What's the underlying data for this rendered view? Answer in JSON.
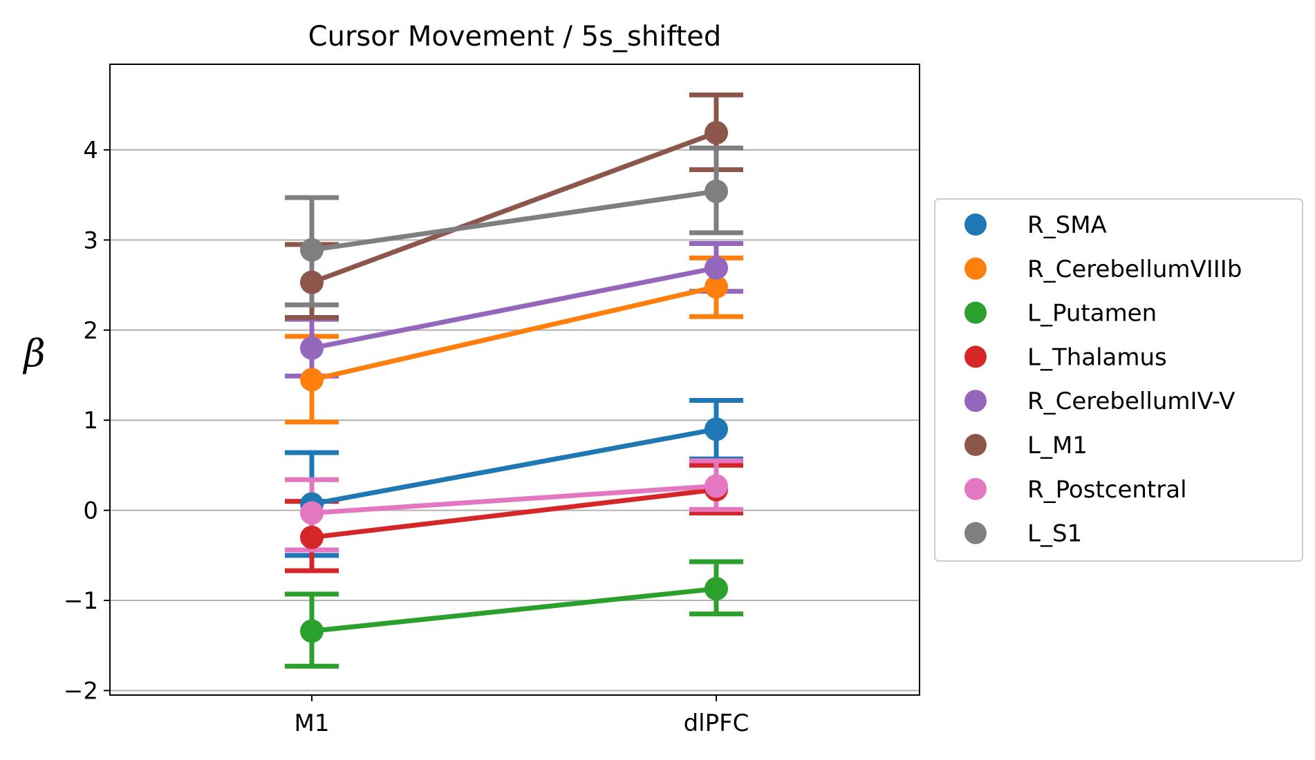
{
  "chart_data": {
    "type": "line",
    "title": "Cursor Movement / 5s_shifted",
    "xlabel": "",
    "ylabel": "β",
    "categories": [
      "M1",
      "dlPFC"
    ],
    "ylim": [
      -2.05,
      4.95
    ],
    "yticks": [
      -2,
      -1,
      0,
      1,
      2,
      3,
      4
    ],
    "ytick_labels": [
      "−2",
      "−1",
      "0",
      "1",
      "2",
      "3",
      "4"
    ],
    "grid": "horizontal",
    "legend": "right",
    "series": [
      {
        "name": "R_SMA",
        "color": "#1f77b4",
        "values": [
          0.07,
          0.9
        ],
        "lower": [
          -0.5,
          0.57
        ],
        "upper": [
          0.64,
          1.22
        ]
      },
      {
        "name": "R_CerebellumVIIIb",
        "color": "#ff7f0e",
        "values": [
          1.45,
          2.48
        ],
        "lower": [
          0.98,
          2.15
        ],
        "upper": [
          1.93,
          2.8
        ]
      },
      {
        "name": "L_Putamen",
        "color": "#2ca02c",
        "values": [
          -1.34,
          -0.87
        ],
        "lower": [
          -1.73,
          -1.15
        ],
        "upper": [
          -0.93,
          -0.57
        ]
      },
      {
        "name": "L_Thalamus",
        "color": "#d62728",
        "values": [
          -0.3,
          0.23
        ],
        "lower": [
          -0.67,
          -0.03
        ],
        "upper": [
          0.1,
          0.5
        ]
      },
      {
        "name": "R_CerebellumIV-V",
        "color": "#9467bd",
        "values": [
          1.8,
          2.69
        ],
        "lower": [
          1.49,
          2.43
        ],
        "upper": [
          2.12,
          2.96
        ]
      },
      {
        "name": "L_M1",
        "color": "#8c564b",
        "values": [
          2.53,
          4.19
        ],
        "lower": [
          2.14,
          3.78
        ],
        "upper": [
          2.95,
          4.61
        ]
      },
      {
        "name": "R_Postcentral",
        "color": "#e377c2",
        "values": [
          -0.03,
          0.27
        ],
        "lower": [
          -0.44,
          0.01
        ],
        "upper": [
          0.34,
          0.55
        ]
      },
      {
        "name": "L_S1",
        "color": "#7f7f7f",
        "values": [
          2.89,
          3.54
        ],
        "lower": [
          2.28,
          3.08
        ],
        "upper": [
          3.47,
          4.02
        ]
      }
    ]
  }
}
